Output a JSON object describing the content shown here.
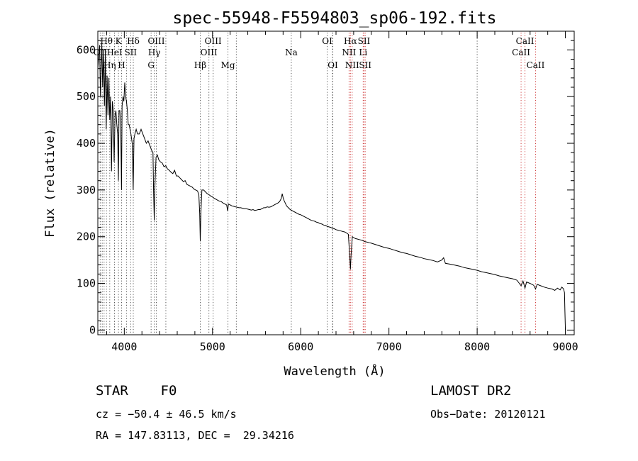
{
  "chart_data": {
    "type": "line",
    "title": "spec-55948-F5594803_sp06-192.fits",
    "xlabel": "Wavelength (Å)",
    "ylabel": "Flux (relative)",
    "xlim": [
      3700,
      9100
    ],
    "ylim": [
      -10,
      640
    ],
    "xticks": [
      4000,
      5000,
      6000,
      7000,
      8000,
      9000
    ],
    "yticks": [
      0,
      100,
      200,
      300,
      400,
      500,
      600
    ],
    "grid": false,
    "series": [
      {
        "color": "#000000",
        "points": [
          [
            3700,
            560
          ],
          [
            3720,
            610
          ],
          [
            3730,
            500
          ],
          [
            3745,
            615
          ],
          [
            3755,
            520
          ],
          [
            3765,
            600
          ],
          [
            3775,
            480
          ],
          [
            3785,
            590
          ],
          [
            3795,
            430
          ],
          [
            3805,
            545
          ],
          [
            3815,
            460
          ],
          [
            3825,
            540
          ],
          [
            3835,
            450
          ],
          [
            3845,
            500
          ],
          [
            3855,
            340
          ],
          [
            3865,
            490
          ],
          [
            3875,
            470
          ],
          [
            3885,
            360
          ],
          [
            3895,
            460
          ],
          [
            3905,
            470
          ],
          [
            3915,
            440
          ],
          [
            3925,
            420
          ],
          [
            3933,
            320
          ],
          [
            3940,
            470
          ],
          [
            3950,
            470
          ],
          [
            3960,
            430
          ],
          [
            3968,
            300
          ],
          [
            3975,
            480
          ],
          [
            3985,
            500
          ],
          [
            3995,
            490
          ],
          [
            4005,
            530
          ],
          [
            4015,
            500
          ],
          [
            4025,
            490
          ],
          [
            4035,
            470
          ],
          [
            4045,
            440
          ],
          [
            4055,
            440
          ],
          [
            4065,
            430
          ],
          [
            4075,
            420
          ],
          [
            4090,
            400
          ],
          [
            4101,
            300
          ],
          [
            4110,
            410
          ],
          [
            4120,
            420
          ],
          [
            4135,
            430
          ],
          [
            4150,
            420
          ],
          [
            4170,
            420
          ],
          [
            4190,
            430
          ],
          [
            4210,
            420
          ],
          [
            4230,
            410
          ],
          [
            4250,
            400
          ],
          [
            4270,
            405
          ],
          [
            4290,
            395
          ],
          [
            4310,
            385
          ],
          [
            4325,
            380
          ],
          [
            4332,
            300
          ],
          [
            4340,
            235
          ],
          [
            4348,
            310
          ],
          [
            4360,
            370
          ],
          [
            4375,
            375
          ],
          [
            4390,
            365
          ],
          [
            4410,
            360
          ],
          [
            4430,
            358
          ],
          [
            4450,
            350
          ],
          [
            4470,
            352
          ],
          [
            4490,
            345
          ],
          [
            4510,
            342
          ],
          [
            4530,
            338
          ],
          [
            4550,
            335
          ],
          [
            4570,
            342
          ],
          [
            4590,
            330
          ],
          [
            4610,
            330
          ],
          [
            4630,
            326
          ],
          [
            4650,
            322
          ],
          [
            4670,
            318
          ],
          [
            4690,
            320
          ],
          [
            4710,
            312
          ],
          [
            4730,
            310
          ],
          [
            4750,
            308
          ],
          [
            4770,
            306
          ],
          [
            4790,
            302
          ],
          [
            4810,
            300
          ],
          [
            4830,
            298
          ],
          [
            4845,
            290
          ],
          [
            4855,
            250
          ],
          [
            4861,
            190
          ],
          [
            4868,
            250
          ],
          [
            4880,
            300
          ],
          [
            4900,
            300
          ],
          [
            4920,
            296
          ],
          [
            4940,
            292
          ],
          [
            4960,
            290
          ],
          [
            4980,
            287
          ],
          [
            5000,
            285
          ],
          [
            5020,
            282
          ],
          [
            5040,
            280
          ],
          [
            5060,
            278
          ],
          [
            5080,
            276
          ],
          [
            5100,
            275
          ],
          [
            5120,
            272
          ],
          [
            5140,
            270
          ],
          [
            5160,
            268
          ],
          [
            5172,
            255
          ],
          [
            5180,
            270
          ],
          [
            5200,
            268
          ],
          [
            5220,
            266
          ],
          [
            5240,
            265
          ],
          [
            5260,
            264
          ],
          [
            5280,
            263
          ],
          [
            5300,
            262
          ],
          [
            5320,
            262
          ],
          [
            5340,
            261
          ],
          [
            5360,
            260
          ],
          [
            5380,
            260
          ],
          [
            5400,
            259
          ],
          [
            5420,
            258
          ],
          [
            5440,
            257
          ],
          [
            5460,
            258
          ],
          [
            5480,
            256
          ],
          [
            5500,
            257
          ],
          [
            5520,
            258
          ],
          [
            5540,
            258
          ],
          [
            5560,
            260
          ],
          [
            5580,
            262
          ],
          [
            5600,
            262
          ],
          [
            5620,
            264
          ],
          [
            5640,
            263
          ],
          [
            5660,
            264
          ],
          [
            5680,
            266
          ],
          [
            5700,
            268
          ],
          [
            5720,
            270
          ],
          [
            5740,
            272
          ],
          [
            5760,
            275
          ],
          [
            5780,
            282
          ],
          [
            5790,
            292
          ],
          [
            5800,
            284
          ],
          [
            5810,
            278
          ],
          [
            5825,
            272
          ],
          [
            5840,
            266
          ],
          [
            5860,
            262
          ],
          [
            5880,
            258
          ],
          [
            5900,
            256
          ],
          [
            5920,
            254
          ],
          [
            5940,
            252
          ],
          [
            5960,
            250
          ],
          [
            5980,
            248
          ],
          [
            6000,
            247
          ],
          [
            6020,
            245
          ],
          [
            6040,
            243
          ],
          [
            6060,
            241
          ],
          [
            6080,
            239
          ],
          [
            6100,
            237
          ],
          [
            6120,
            235
          ],
          [
            6140,
            234
          ],
          [
            6160,
            233
          ],
          [
            6180,
            231
          ],
          [
            6200,
            230
          ],
          [
            6220,
            228
          ],
          [
            6240,
            227
          ],
          [
            6260,
            225
          ],
          [
            6280,
            224
          ],
          [
            6300,
            222
          ],
          [
            6320,
            221
          ],
          [
            6340,
            220
          ],
          [
            6360,
            218
          ],
          [
            6380,
            217
          ],
          [
            6400,
            215
          ],
          [
            6420,
            214
          ],
          [
            6440,
            213
          ],
          [
            6460,
            212
          ],
          [
            6480,
            211
          ],
          [
            6500,
            210
          ],
          [
            6520,
            208
          ],
          [
            6540,
            205
          ],
          [
            6555,
            160
          ],
          [
            6563,
            130
          ],
          [
            6570,
            160
          ],
          [
            6585,
            200
          ],
          [
            6600,
            198
          ],
          [
            6620,
            196
          ],
          [
            6640,
            195
          ],
          [
            6660,
            194
          ],
          [
            6680,
            193
          ],
          [
            6700,
            192
          ],
          [
            6720,
            190
          ],
          [
            6740,
            189
          ],
          [
            6760,
            188
          ],
          [
            6780,
            187
          ],
          [
            6800,
            186
          ],
          [
            6850,
            183
          ],
          [
            6900,
            180
          ],
          [
            6950,
            177
          ],
          [
            7000,
            175
          ],
          [
            7050,
            172
          ],
          [
            7100,
            169
          ],
          [
            7150,
            166
          ],
          [
            7200,
            164
          ],
          [
            7250,
            161
          ],
          [
            7300,
            158
          ],
          [
            7350,
            156
          ],
          [
            7400,
            153
          ],
          [
            7450,
            151
          ],
          [
            7500,
            149
          ],
          [
            7550,
            146
          ],
          [
            7600,
            150
          ],
          [
            7620,
            155
          ],
          [
            7640,
            143
          ],
          [
            7700,
            141
          ],
          [
            7750,
            139
          ],
          [
            7800,
            137
          ],
          [
            7850,
            134
          ],
          [
            7900,
            132
          ],
          [
            7950,
            130
          ],
          [
            8000,
            128
          ],
          [
            8050,
            125
          ],
          [
            8100,
            123
          ],
          [
            8150,
            121
          ],
          [
            8200,
            119
          ],
          [
            8250,
            116
          ],
          [
            8300,
            114
          ],
          [
            8350,
            112
          ],
          [
            8400,
            110
          ],
          [
            8450,
            107
          ],
          [
            8498,
            95
          ],
          [
            8520,
            105
          ],
          [
            8542,
            90
          ],
          [
            8560,
            103
          ],
          [
            8600,
            100
          ],
          [
            8640,
            96
          ],
          [
            8662,
            88
          ],
          [
            8680,
            98
          ],
          [
            8720,
            95
          ],
          [
            8760,
            92
          ],
          [
            8800,
            90
          ],
          [
            8850,
            88
          ],
          [
            8880,
            85
          ],
          [
            8910,
            90
          ],
          [
            8940,
            86
          ],
          [
            8960,
            92
          ],
          [
            8980,
            88
          ],
          [
            8990,
            80
          ],
          [
            8995,
            40
          ],
          [
            9000,
            0
          ]
        ]
      }
    ],
    "line_markers": [
      {
        "label": "Hθ",
        "x": 3798,
        "row": 1
      },
      {
        "label": "K",
        "x": 3934,
        "row": 1
      },
      {
        "label": "Hδ",
        "x": 4102,
        "row": 1
      },
      {
        "label": "OIII",
        "x": 4363,
        "row": 1
      },
      {
        "label": "OIII",
        "x": 5007,
        "row": 1
      },
      {
        "label": "OI",
        "x": 6300,
        "row": 1
      },
      {
        "label": "Hα",
        "x": 6563,
        "row": 1
      },
      {
        "label": "SII",
        "x": 6717,
        "row": 1
      },
      {
        "label": "CaII",
        "x": 8542,
        "row": 1
      },
      {
        "label": "OII",
        "x": 3727,
        "row": 2
      },
      {
        "label": "HeI",
        "x": 3889,
        "row": 2
      },
      {
        "label": "SII",
        "x": 4072,
        "row": 2
      },
      {
        "label": "Hγ",
        "x": 4340,
        "row": 2
      },
      {
        "label": "OIII",
        "x": 4959,
        "row": 2
      },
      {
        "label": "Na",
        "x": 5893,
        "row": 2
      },
      {
        "label": "NII",
        "x": 6548,
        "row": 2
      },
      {
        "label": "Li",
        "x": 6708,
        "row": 2
      },
      {
        "label": "CaII",
        "x": 8498,
        "row": 2
      },
      {
        "label": "Hη",
        "x": 3835,
        "row": 3
      },
      {
        "label": "H",
        "x": 3969,
        "row": 3
      },
      {
        "label": "G",
        "x": 4304,
        "row": 3
      },
      {
        "label": "Hβ",
        "x": 4861,
        "row": 3
      },
      {
        "label": "Mg",
        "x": 5175,
        "row": 3
      },
      {
        "label": "OI",
        "x": 6364,
        "row": 3
      },
      {
        "label": "NII",
        "x": 6583,
        "row": 3
      },
      {
        "label": "SII",
        "x": 6731,
        "row": 3
      },
      {
        "label": "CaII",
        "x": 8662,
        "row": 3
      }
    ],
    "extra_dotted_lines": [
      3750,
      3771,
      3889,
      4026,
      4471,
      5270,
      6360,
      8000
    ],
    "marker_colors": {
      "absorption": "#555555",
      "emission": "#d04040"
    }
  },
  "info": {
    "class_label": "STAR    F0",
    "survey": "LAMOST DR2",
    "cz": "cz = −50.4 ± 46.5 km/s",
    "obs_date": "Obs−Date: 20120121",
    "coords": "RA = 147.83113, DEC =  29.34216"
  }
}
